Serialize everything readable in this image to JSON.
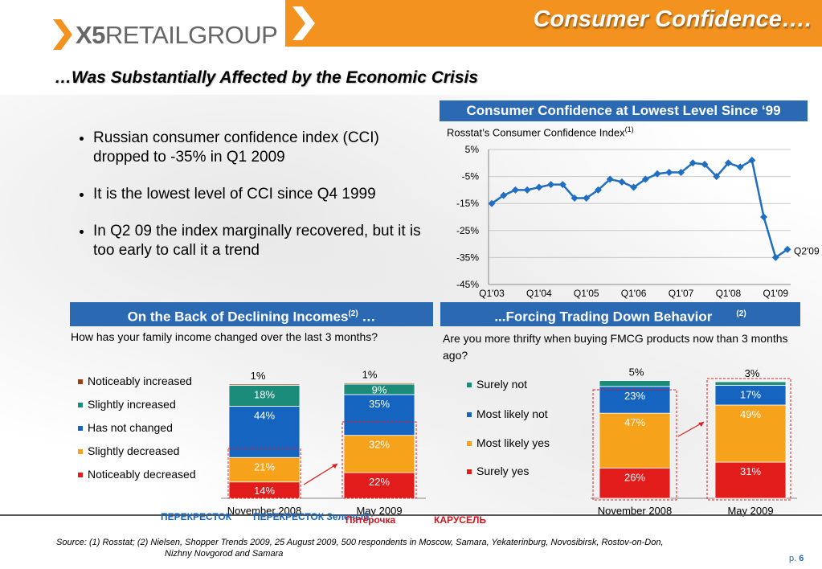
{
  "header": {
    "logo_x5": "X5",
    "logo_rest": "RETAILGROUP",
    "title": "Consumer Confidence….",
    "subtitle": "…Was Substantially Affected by the Economic Crisis"
  },
  "bullets": [
    "Russian consumer confidence index (CCI) dropped to -35% in Q1 2009",
    "It is the lowest level of CCI since Q4 1999",
    "In Q2 09 the index marginally recovered, but it is too early to call it a trend"
  ],
  "colors": {
    "orange": "#f3921f",
    "blue_header": "#2b6ab3",
    "line": "#1f6ec0",
    "noticeably_increased": "#a33a12",
    "slightly_increased": "#1b8c7a",
    "has_not_changed": "#1565c0",
    "slightly_decreased": "#f7a21b",
    "noticeably_decreased": "#e21b1b"
  },
  "chart_data": [
    {
      "type": "line",
      "header": "Consumer Confidence at Lowest Level Since ‘99",
      "title": "Rosstat’s Consumer Confidence Index",
      "title_sup": "(1)",
      "x_ticks": [
        "Q1'03",
        "Q1'04",
        "Q1'05",
        "Q1'06",
        "Q1'07",
        "Q1'08",
        "Q1'09"
      ],
      "y_ticks": [
        "5%",
        "-5%",
        "-15%",
        "-25%",
        "-35%",
        "-45%"
      ],
      "ylim": [
        -45,
        5
      ],
      "values": [
        -15,
        -12,
        -10,
        -10,
        -9,
        -8,
        -8,
        -13,
        -13,
        -10,
        -6,
        -7,
        -9,
        -6,
        -4,
        -3.5,
        -3.5,
        0,
        -0.5,
        -5,
        0,
        -1.5,
        1,
        -20,
        -35,
        -32
      ],
      "last_label": "Q2'09",
      "grid": "horizontal"
    },
    {
      "type": "bar",
      "stacked": true,
      "header": "On the Back of Declining Incomes",
      "header_sup": "(2)",
      "header_tail": " …",
      "question": "How has your family income changed over the last 3 months?",
      "categories": [
        "November 2008",
        "May 2009"
      ],
      "series": [
        {
          "name": "Noticeably decreased",
          "values": [
            14,
            22
          ],
          "labels": [
            "14%",
            "22%"
          ]
        },
        {
          "name": "Slightly decreased",
          "values": [
            21,
            32
          ],
          "labels": [
            "21%",
            "32%"
          ]
        },
        {
          "name": "Has not changed",
          "values": [
            44,
            35
          ],
          "labels": [
            "44%",
            "35%"
          ]
        },
        {
          "name": "Slightly increased",
          "values": [
            18,
            9
          ],
          "labels": [
            "18%",
            "9%"
          ]
        },
        {
          "name": "Noticeably increased",
          "values": [
            1,
            1
          ],
          "labels": [
            "1%",
            "1%"
          ]
        }
      ],
      "legend": [
        "Noticeably increased",
        "Slightly increased",
        "Has not changed",
        "Slightly decreased",
        "Noticeably decreased"
      ]
    },
    {
      "type": "bar",
      "stacked": true,
      "header": "...Forcing Trading Down Behavior",
      "header_sup": "(2)",
      "question": "Are you more thrifty when buying FMCG products now than 3 months ago?",
      "categories": [
        "November 2008",
        "May 2009"
      ],
      "series": [
        {
          "name": "Surely yes",
          "values": [
            26,
            31
          ],
          "labels": [
            "26%",
            "31%"
          ]
        },
        {
          "name": "Most likely yes",
          "values": [
            47,
            49
          ],
          "labels": [
            "47%",
            "49%"
          ]
        },
        {
          "name": "Most likely not",
          "values": [
            23,
            17
          ],
          "labels": [
            "23%",
            "17%"
          ]
        },
        {
          "name": "Surely not",
          "values": [
            5,
            3
          ],
          "labels": [
            "5%",
            "3%"
          ]
        }
      ],
      "legend": [
        "Surely not",
        "Most likely not",
        "Most likely yes",
        "Surely yes"
      ]
    }
  ],
  "brands": [
    "ПЕРЕКРЕСТОК",
    "ПЕРЕКРЕСТОК Зеленый",
    "Пятёрочка",
    "КАРУСЕЛЬ"
  ],
  "footer": {
    "source_line1": "Source: (1) Rosstat; (2) Nielsen, Shopper Trends 2009, 25 August 2009, 500 respondents in Moscow, Samara, Yekaterinburg, Novosibirsk, Rostov-on-Don,",
    "source_line2": "Nizhny Novgorod and Samara",
    "page_prefix": "p.",
    "page_number": "6"
  }
}
